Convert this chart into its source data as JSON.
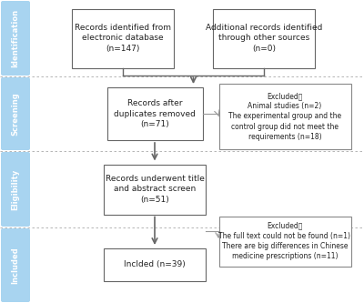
{
  "background_color": "#ffffff",
  "sidebar_color": "#a8d4f0",
  "sidebar_labels": [
    "Identification",
    "Screening",
    "Eligibility",
    "Included"
  ],
  "box1_text": "Records identified from\nelectronic database\n(n=147)",
  "box2_text": "Additional records identified\nthrough other sources\n(n=0)",
  "box3_text": "Records after\nduplicates removed\n(n=71)",
  "box4_text": "Records underwent title\nand abstract screen\n(n=51)",
  "box5_text": "Inclded (n=39)",
  "excl1_text": "Excluded：\nAnimal studies (n=2)\nThe experimental group and the\ncontrol group did not meet the\nrequirements (n=18)",
  "excl2_text": "Excluded：\nThe full text could not be found (n=1)\nThere are big differences in Chinese\nmedicine prescriptions (n=11)",
  "box_edge_color": "#666666",
  "arrow_color": "#666666",
  "side_arrow_color": "#999999",
  "text_color": "#222222",
  "dotted_color": "#aaaaaa",
  "font_size": 6.0,
  "small_font_size": 5.8
}
